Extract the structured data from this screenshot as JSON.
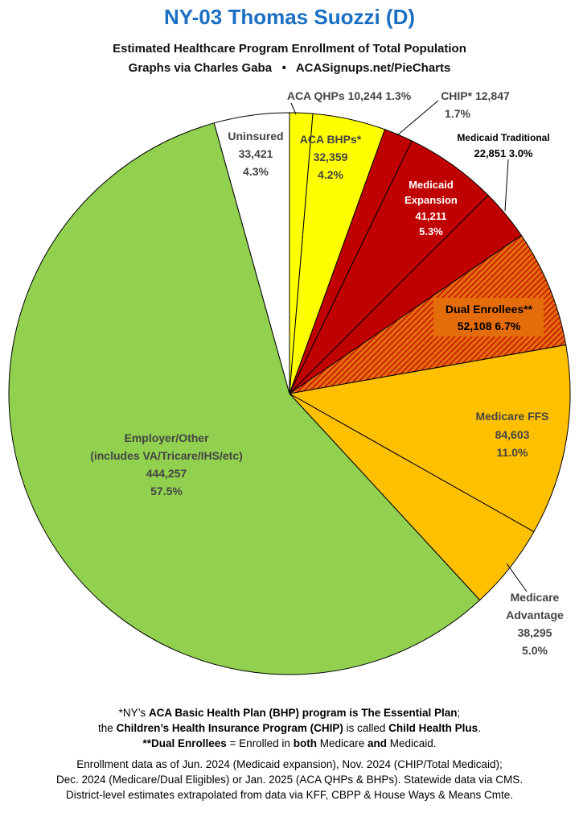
{
  "header": {
    "title": "NY-03 Thomas Suozzi (D)",
    "subtitle": "Estimated Healthcare Program Enrollment of Total Population",
    "source_line_left": "Graphs via Charles Gaba",
    "source_separator": "•",
    "source_line_right": "ACASignups.net/PieCharts"
  },
  "colors": {
    "aca_qhp": "#ffff00",
    "aca_bhp": "#ffff00",
    "chip": "#c00000",
    "medicaid_expansion": "#c00000",
    "medicaid_traditional": "#c00000",
    "dual": "#e46c0a",
    "medicare_ffs": "#ffc000",
    "medicare_advantage": "#ffc000",
    "employer": "#92d050",
    "uninsured": "#ffffff",
    "title": "#1a6fc4"
  },
  "chart_data": {
    "type": "pie",
    "start": "12 o'clock, clockwise",
    "slices": [
      {
        "label": "ACA QHPs",
        "value": 10244,
        "pct": "1.3%",
        "value_text": "10,244",
        "color": "#ffff00"
      },
      {
        "label": "ACA BHPs*",
        "value": 32359,
        "pct": "4.2%",
        "value_text": "32,359",
        "color": "#ffff00"
      },
      {
        "label": "CHIP*",
        "value": 12847,
        "pct": "1.7%",
        "value_text": "12,847",
        "color": "#c00000"
      },
      {
        "label": "Medicaid Expansion",
        "value": 41211,
        "pct": "5.3%",
        "value_text": "41,211",
        "color": "#c00000"
      },
      {
        "label": "Medicaid Traditional",
        "value": 22851,
        "pct": "3.0%",
        "value_text": "22,851",
        "color": "#c00000"
      },
      {
        "label": "Dual Enrollees**",
        "value": 52108,
        "pct": "6.7%",
        "value_text": "52,108",
        "color": "#e46c0a",
        "pattern": "hatched"
      },
      {
        "label": "Medicare FFS",
        "value": 84603,
        "pct": "11.0%",
        "value_text": "84,603",
        "color": "#ffc000"
      },
      {
        "label": "Medicare Advantage",
        "value": 38295,
        "pct": "5.0%",
        "value_text": "38,295",
        "color": "#ffc000"
      },
      {
        "label": "Employer/Other",
        "value": 444257,
        "pct": "57.5%",
        "value_text": "444,257",
        "color": "#92d050",
        "note": "(includes VA/Tricare/IHS/etc)"
      },
      {
        "label": "Uninsured",
        "value": 33421,
        "pct": "4.3%",
        "value_text": "33,421",
        "color": "#ffffff"
      }
    ]
  },
  "labels": {
    "aca_qhp": "ACA QHPs 10,244 1.3%",
    "chip_line1": "CHIP* 12,847",
    "chip_line2": "1.7%",
    "bhp_line1": "ACA BHPs*",
    "bhp_line2": "32,359",
    "bhp_line3": "4.2%",
    "med_trad_line1": "Medicaid Traditional",
    "med_trad_line2": "22,851 3.0%",
    "med_exp_line1": "Medicaid",
    "med_exp_line2": "Expansion",
    "med_exp_line3": "41,211",
    "med_exp_line4": "5.3%",
    "dual_line1": "Dual Enrollees**",
    "dual_line2": "52,108 6.7%",
    "ffs_line1": "Medicare FFS",
    "ffs_line2": "84,603",
    "ffs_line3": "11.0%",
    "adv_line1": "Medicare",
    "adv_line2": "Advantage",
    "adv_line3": "38,295",
    "adv_line4": "5.0%",
    "emp_line1": "Employer/Other",
    "emp_line2": "(includes VA/Tricare/IHS/etc)",
    "emp_line3": "444,257",
    "emp_line4": "57.5%",
    "unins_line1": "Uninsured",
    "unins_line2": "33,421",
    "unins_line3": "4.3%"
  },
  "footnotes": {
    "f1_a": "*NY’s ",
    "f1_b": "ACA Basic Health Plan (BHP) program is The Essential Plan",
    "f1_c": ";",
    "f2_a": "the ",
    "f2_b": "Children’s Health Insurance Program (CHIP)",
    "f2_c": " is called ",
    "f2_d": "Child Health Plus",
    "f2_e": ".",
    "f3_a": "**Dual Enrollees",
    "f3_b": " = Enrolled in ",
    "f3_c": "both",
    "f3_d": " Medicare ",
    "f3_e": "and",
    "f3_f": " Medicaid.",
    "f4": "Enrollment data as of Jun. 2024 (Medicaid expansion), Nov. 2024 (CHIP/Total Medicaid);",
    "f5": "Dec. 2024 (Medicare/Dual Eligibles) or Jan. 2025 (ACA QHPs & BHPs). Statewide data via CMS.",
    "f6": "District-level estimates extrapolated from data via KFF, CBPP & House Ways & Means Cmte."
  }
}
